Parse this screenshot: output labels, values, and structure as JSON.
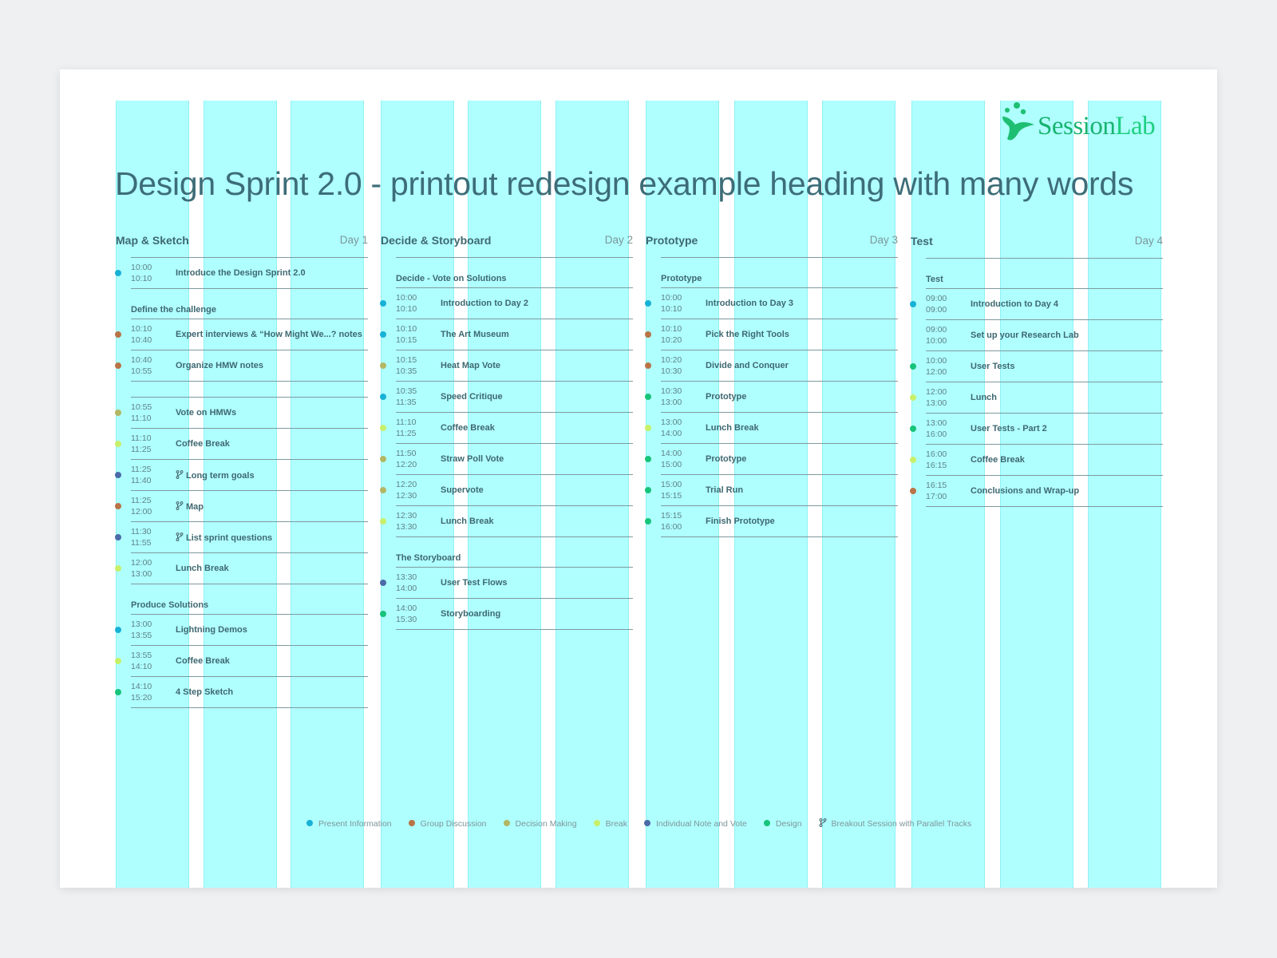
{
  "heading": "Design Sprint 2.0 - printout redesign example heading with many words",
  "logo": {
    "session": "Session",
    "lab": "Lab",
    "color": "#1fbf73"
  },
  "colors": {
    "present": "#18b1d6",
    "group": "#b97346",
    "decision": "#b3b763",
    "break": "#c8ef6a",
    "individual": "#4b6aa8",
    "design": "#17c37a"
  },
  "legend": [
    {
      "label": "Present Information",
      "type": "present"
    },
    {
      "label": "Group Discussion",
      "type": "group"
    },
    {
      "label": "Decision Making",
      "type": "decision"
    },
    {
      "label": "Break",
      "type": "break"
    },
    {
      "label": "Individual Note and Vote",
      "type": "individual"
    },
    {
      "label": "Design",
      "type": "design"
    },
    {
      "label": "Breakout Session with Parallel Tracks",
      "type": "branch",
      "icon": "branch-icon"
    }
  ],
  "days": [
    {
      "phase": "Map & Sketch",
      "day": "Day 1",
      "rows": [
        {
          "kind": "item",
          "start": "10:00",
          "end": "10:10",
          "title": "Introduce the Design Sprint 2.0",
          "type": "present"
        },
        {
          "kind": "section",
          "title": "Define the challenge"
        },
        {
          "kind": "item",
          "start": "10:10",
          "end": "10:40",
          "title": "Expert interviews & “How Might We...? notes",
          "type": "group"
        },
        {
          "kind": "item",
          "start": "10:40",
          "end": "10:55",
          "title": "Organize HMW notes",
          "type": "group"
        },
        {
          "kind": "spacer"
        },
        {
          "kind": "item",
          "start": "10:55",
          "end": "11:10",
          "title": "Vote on HMWs",
          "type": "decision"
        },
        {
          "kind": "item",
          "start": "11:10",
          "end": "11:25",
          "title": "Coffee Break",
          "type": "break"
        },
        {
          "kind": "item",
          "start": "11:25",
          "end": "11:40",
          "title": "Long term goals",
          "type": "individual",
          "branch": true
        },
        {
          "kind": "item",
          "start": "11:25",
          "end": "12:00",
          "title": "Map",
          "type": "group",
          "branch": true
        },
        {
          "kind": "item",
          "start": "11:30",
          "end": "11:55",
          "title": "List sprint questions",
          "type": "individual",
          "branch": true
        },
        {
          "kind": "item",
          "start": "12:00",
          "end": "13:00",
          "title": "Lunch Break",
          "type": "break"
        },
        {
          "kind": "section",
          "title": "Produce Solutions"
        },
        {
          "kind": "item",
          "start": "13:00",
          "end": "13:55",
          "title": "Lightning Demos",
          "type": "present"
        },
        {
          "kind": "item",
          "start": "13:55",
          "end": "14:10",
          "title": "Coffee Break",
          "type": "break"
        },
        {
          "kind": "item",
          "start": "14:10",
          "end": "15:20",
          "title": "4 Step Sketch",
          "type": "design"
        }
      ]
    },
    {
      "phase": "Decide & Storyboard",
      "day": "Day 2",
      "rows": [
        {
          "kind": "section",
          "title": "Decide - Vote on Solutions"
        },
        {
          "kind": "item",
          "start": "10:00",
          "end": "10:10",
          "title": "Introduction to Day 2",
          "type": "present"
        },
        {
          "kind": "item",
          "start": "10:10",
          "end": "10:15",
          "title": "The Art Museum",
          "type": "present"
        },
        {
          "kind": "item",
          "start": "10:15",
          "end": "10:35",
          "title": "Heat Map Vote",
          "type": "decision"
        },
        {
          "kind": "item",
          "start": "10:35",
          "end": "11:35",
          "title": "Speed Critique",
          "type": "present"
        },
        {
          "kind": "item",
          "start": "11:10",
          "end": "11:25",
          "title": "Coffee Break",
          "type": "break"
        },
        {
          "kind": "item",
          "start": "11:50",
          "end": "12:20",
          "title": "Straw Poll Vote",
          "type": "decision"
        },
        {
          "kind": "item",
          "start": "12:20",
          "end": "12:30",
          "title": "Supervote",
          "type": "decision"
        },
        {
          "kind": "item",
          "start": "12:30",
          "end": "13:30",
          "title": "Lunch Break",
          "type": "break"
        },
        {
          "kind": "section",
          "title": "The Storyboard"
        },
        {
          "kind": "item",
          "start": "13:30",
          "end": "14:00",
          "title": "User Test Flows",
          "type": "individual"
        },
        {
          "kind": "item",
          "start": "14:00",
          "end": "15:30",
          "title": "Storyboarding",
          "type": "design"
        }
      ]
    },
    {
      "phase": "Prototype",
      "day": "Day 3",
      "rows": [
        {
          "kind": "section",
          "title": "Prototype"
        },
        {
          "kind": "item",
          "start": "10:00",
          "end": "10:10",
          "title": "Introduction to Day 3",
          "type": "present"
        },
        {
          "kind": "item",
          "start": "10:10",
          "end": "10:20",
          "title": "Pick the Right Tools",
          "type": "group"
        },
        {
          "kind": "item",
          "start": "10:20",
          "end": "10:30",
          "title": "Divide and Conquer",
          "type": "group"
        },
        {
          "kind": "item",
          "start": "10:30",
          "end": "13:00",
          "title": "Prototype",
          "type": "design"
        },
        {
          "kind": "item",
          "start": "13:00",
          "end": "14:00",
          "title": "Lunch Break",
          "type": "break"
        },
        {
          "kind": "item",
          "start": "14:00",
          "end": "15:00",
          "title": "Prototype",
          "type": "design"
        },
        {
          "kind": "item",
          "start": "15:00",
          "end": "15:15",
          "title": "Trial Run",
          "type": "design"
        },
        {
          "kind": "item",
          "start": "15:15",
          "end": "16:00",
          "title": "Finish Prototype",
          "type": "design"
        }
      ]
    },
    {
      "phase": "Test",
      "day": "Day 4",
      "rows": [
        {
          "kind": "section",
          "title": "Test"
        },
        {
          "kind": "item",
          "start": "09:00",
          "end": "09:00",
          "title": "Introduction to Day 4",
          "type": "present"
        },
        {
          "kind": "item",
          "start": "09:00",
          "end": "10:00",
          "title": "Set up your Research Lab",
          "type": "none"
        },
        {
          "kind": "item",
          "start": "10:00",
          "end": "12:00",
          "title": "User Tests",
          "type": "design"
        },
        {
          "kind": "item",
          "start": "12:00",
          "end": "13:00",
          "title": "Lunch",
          "type": "break"
        },
        {
          "kind": "item",
          "start": "13:00",
          "end": "16:00",
          "title": "User Tests - Part 2",
          "type": "design"
        },
        {
          "kind": "item",
          "start": "16:00",
          "end": "16:15",
          "title": "Coffee Break",
          "type": "break"
        },
        {
          "kind": "item",
          "start": "16:15",
          "end": "17:00",
          "title": "Conclusions and Wrap-up",
          "type": "group"
        }
      ]
    }
  ]
}
